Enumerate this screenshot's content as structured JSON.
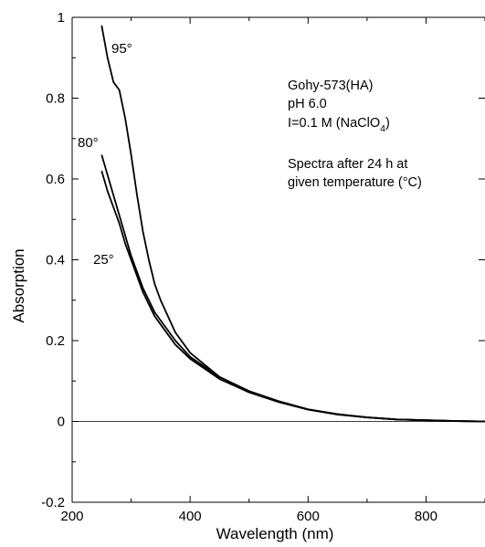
{
  "chart_data": {
    "type": "line",
    "title": "",
    "xlabel": "Wavelength (nm)",
    "ylabel": "Absorption",
    "xlim": [
      200,
      900
    ],
    "ylim": [
      -0.2,
      1.0
    ],
    "x_ticks": [
      "200",
      "400",
      "600",
      "800"
    ],
    "y_ticks": [
      "-0.2",
      "0",
      "0.2",
      "0.4",
      "0.6",
      "0.8",
      "1"
    ],
    "grid": false,
    "zero_line": true,
    "annotation_lines": [
      "Gohy-573(HA)",
      "pH 6.0",
      "I=0.1 M (NaClO",
      "4",
      ")",
      "Spectra after 24 h at",
      "given temperature (°C)"
    ],
    "series": [
      {
        "name": "95°",
        "x": [
          250,
          260,
          270,
          280,
          290,
          300,
          310,
          320,
          330,
          340,
          350,
          375,
          400,
          450,
          500,
          550,
          600,
          650,
          700,
          750,
          800,
          850,
          900
        ],
        "values": [
          0.98,
          0.9,
          0.84,
          0.82,
          0.75,
          0.66,
          0.56,
          0.47,
          0.4,
          0.34,
          0.3,
          0.22,
          0.17,
          0.11,
          0.075,
          0.05,
          0.03,
          0.018,
          0.01,
          0.005,
          0.003,
          0.001,
          0.0
        ]
      },
      {
        "name": "80°",
        "x": [
          250,
          260,
          270,
          280,
          290,
          300,
          310,
          320,
          330,
          340,
          350,
          375,
          400,
          450,
          500,
          550,
          600,
          650,
          700,
          750,
          800,
          850,
          900
        ],
        "values": [
          0.66,
          0.61,
          0.56,
          0.51,
          0.46,
          0.41,
          0.37,
          0.33,
          0.3,
          0.27,
          0.25,
          0.2,
          0.16,
          0.11,
          0.075,
          0.05,
          0.03,
          0.018,
          0.01,
          0.005,
          0.003,
          0.001,
          0.0
        ]
      },
      {
        "name": "25°",
        "x": [
          250,
          260,
          270,
          280,
          290,
          300,
          310,
          320,
          330,
          340,
          350,
          375,
          400,
          450,
          500,
          550,
          600,
          650,
          700,
          750,
          800,
          850,
          900
        ],
        "values": [
          0.62,
          0.57,
          0.53,
          0.49,
          0.44,
          0.4,
          0.36,
          0.32,
          0.29,
          0.26,
          0.24,
          0.19,
          0.155,
          0.105,
          0.072,
          0.048,
          0.029,
          0.017,
          0.01,
          0.005,
          0.003,
          0.001,
          0.0
        ]
      }
    ]
  }
}
